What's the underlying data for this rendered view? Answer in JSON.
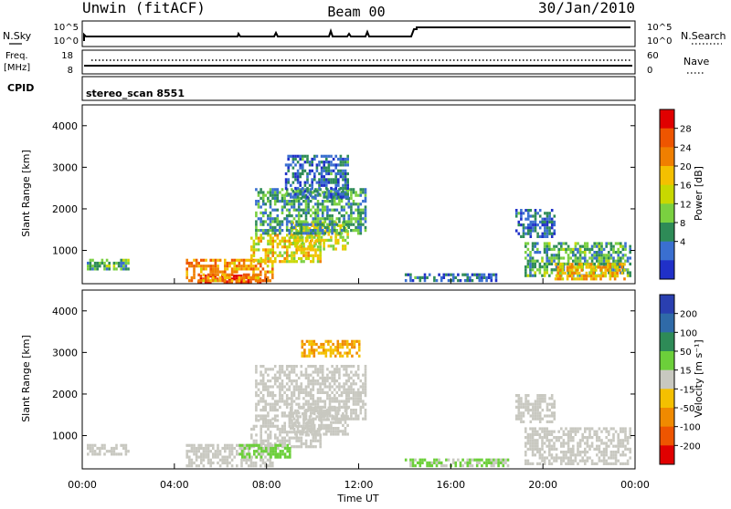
{
  "header": {
    "station": "Unwin (fitACF)",
    "beam": "Beam 00",
    "date": "30/Jan/2010"
  },
  "noise_panel": {
    "left_label": "N.Sky",
    "right_label": "N.Search",
    "left_ticks": [
      "10^5",
      "10^0"
    ],
    "right_ticks": [
      "10^5",
      "10^0"
    ]
  },
  "freq_panel": {
    "left_label_1": "Freq.",
    "left_label_2": "[MHz]",
    "right_label": "Nave",
    "left_ticks": [
      "18",
      "8"
    ],
    "right_ticks": [
      "60",
      "0"
    ]
  },
  "cpid": {
    "label": "CPID",
    "value": "stereo_scan 8551"
  },
  "axes": {
    "ylabel": "Slant Range [km]",
    "xlabel": "Time UT",
    "x_ticks": [
      "00:00",
      "04:00",
      "08:00",
      "12:00",
      "16:00",
      "20:00",
      "00:00"
    ],
    "y_ticks": [
      "4000",
      "3000",
      "2000",
      "1000"
    ]
  },
  "power_colorbar": {
    "label": "Power [dB]",
    "ticks": [
      "28",
      "24",
      "20",
      "16",
      "12",
      "8",
      "4"
    ],
    "colors": [
      "#e00000",
      "#ee5500",
      "#f07f00",
      "#f4c000",
      "#c8d800",
      "#7ad040",
      "#2e8b57",
      "#3a6fd0",
      "#2030c8"
    ]
  },
  "velocity_colorbar": {
    "label": "Velocity [m s⁻¹]",
    "ticks": [
      "200",
      "100",
      "50",
      "15",
      "-15",
      "-50",
      "-100",
      "-200"
    ],
    "colors": [
      "#2a3fb0",
      "#2f6aa8",
      "#2e8b57",
      "#6ccf3a",
      "#c8c8c0",
      "#f4c000",
      "#f08a00",
      "#ee5500",
      "#e00000"
    ]
  },
  "chart_data": [
    {
      "type": "heatmap",
      "title": "Power",
      "xlabel": "Time UT",
      "ylabel": "Slant Range [km]",
      "xlim": [
        0,
        24
      ],
      "ylim": [
        200,
        4500
      ],
      "colorbar_label": "Power [dB]",
      "color_range": [
        0,
        32
      ],
      "blobs": [
        {
          "t0": 5.0,
          "t1": 7.7,
          "r0": 220,
          "r1": 420,
          "value": 30
        },
        {
          "t0": 4.5,
          "t1": 8.3,
          "r0": 300,
          "r1": 800,
          "value": 22
        },
        {
          "t0": 7.3,
          "t1": 10.3,
          "r0": 700,
          "r1": 1400,
          "value": 18
        },
        {
          "t0": 9.0,
          "t1": 11.5,
          "r0": 1000,
          "r1": 1700,
          "value": 16
        },
        {
          "t0": 7.5,
          "t1": 12.3,
          "r0": 1400,
          "r1": 2500,
          "value": 9
        },
        {
          "t0": 8.8,
          "t1": 11.5,
          "r0": 2300,
          "r1": 3300,
          "value": 6
        },
        {
          "t0": 0.2,
          "t1": 2.0,
          "r0": 550,
          "r1": 800,
          "value": 10
        },
        {
          "t0": 18.8,
          "t1": 20.5,
          "r0": 1300,
          "r1": 2000,
          "value": 6
        },
        {
          "t0": 19.2,
          "t1": 23.8,
          "r0": 400,
          "r1": 1200,
          "value": 10
        },
        {
          "t0": 20.5,
          "t1": 23.5,
          "r0": 300,
          "r1": 700,
          "value": 20
        },
        {
          "t0": 14.0,
          "t1": 18.0,
          "r0": 250,
          "r1": 450,
          "value": 6
        }
      ]
    },
    {
      "type": "heatmap",
      "title": "Velocity",
      "xlabel": "Time UT",
      "ylabel": "Slant Range [km]",
      "xlim": [
        0,
        24
      ],
      "ylim": [
        200,
        4500
      ],
      "colorbar_label": "Velocity [m s⁻¹]",
      "color_range": [
        -200,
        200
      ],
      "blobs": [
        {
          "t0": 4.5,
          "t1": 8.3,
          "r0": 250,
          "r1": 800,
          "value": 0
        },
        {
          "t0": 7.3,
          "t1": 10.3,
          "r0": 700,
          "r1": 1400,
          "value": 0
        },
        {
          "t0": 9.0,
          "t1": 11.5,
          "r0": 1000,
          "r1": 1700,
          "value": 0
        },
        {
          "t0": 7.5,
          "t1": 12.3,
          "r0": 1400,
          "r1": 2700,
          "value": 0
        },
        {
          "t0": 9.5,
          "t1": 12.0,
          "r0": 2900,
          "r1": 3300,
          "value": -60
        },
        {
          "t0": 0.2,
          "t1": 2.0,
          "r0": 550,
          "r1": 800,
          "value": 0
        },
        {
          "t0": 18.8,
          "t1": 20.5,
          "r0": 1300,
          "r1": 2000,
          "value": 0
        },
        {
          "t0": 19.2,
          "t1": 23.8,
          "r0": 300,
          "r1": 1200,
          "value": 0
        },
        {
          "t0": 6.8,
          "t1": 9.0,
          "r0": 500,
          "r1": 800,
          "value": 40
        },
        {
          "t0": 14.0,
          "t1": 18.5,
          "r0": 250,
          "r1": 450,
          "value": 30
        }
      ]
    }
  ]
}
